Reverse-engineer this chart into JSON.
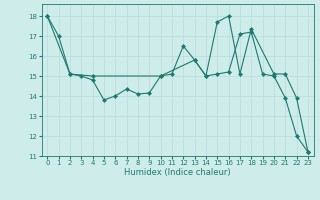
{
  "xlabel": "Humidex (Indice chaleur)",
  "bg_color": "#ceecea",
  "grid_color": "#b8dbd9",
  "line_color": "#1e7a70",
  "xlim": [
    -0.5,
    23.5
  ],
  "ylim": [
    11,
    18.6
  ],
  "yticks": [
    11,
    12,
    13,
    14,
    15,
    16,
    17,
    18
  ],
  "xticks": [
    0,
    1,
    2,
    3,
    4,
    5,
    6,
    7,
    8,
    9,
    10,
    11,
    12,
    13,
    14,
    15,
    16,
    17,
    18,
    19,
    20,
    21,
    22,
    23
  ],
  "line1_x": [
    0,
    1,
    2,
    3,
    4,
    5,
    6,
    7,
    8,
    9,
    10,
    11,
    12,
    13,
    14,
    15,
    16,
    17,
    18,
    19,
    20,
    21,
    22,
    23
  ],
  "line1_y": [
    18.0,
    17.0,
    15.1,
    15.0,
    14.8,
    13.8,
    14.0,
    14.35,
    14.1,
    14.15,
    15.0,
    15.1,
    16.5,
    15.8,
    15.0,
    15.1,
    15.2,
    17.1,
    17.2,
    15.1,
    15.0,
    13.9,
    12.0,
    11.2
  ],
  "line2_x": [
    0,
    2,
    4,
    10,
    13,
    14,
    15,
    16,
    17,
    18,
    20,
    21,
    22,
    23
  ],
  "line2_y": [
    18.0,
    15.1,
    15.0,
    15.0,
    15.8,
    15.0,
    17.7,
    18.0,
    15.1,
    17.35,
    15.1,
    15.1,
    13.9,
    11.2
  ],
  "marker_size": 2.5,
  "linewidth": 0.8,
  "tick_fontsize": 5,
  "xlabel_fontsize": 6
}
